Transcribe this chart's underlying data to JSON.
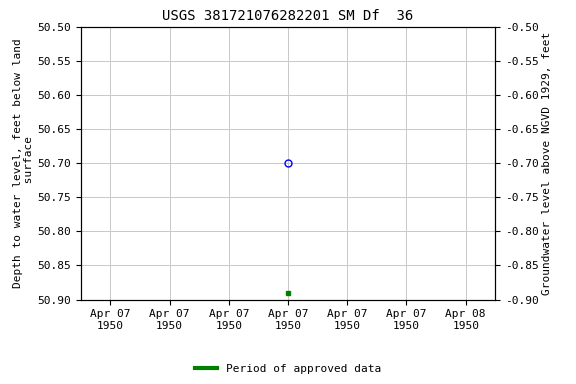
{
  "title": "USGS 381721076282201 SM Df  36",
  "ylabel_left": "Depth to water level, feet below land\n surface",
  "ylabel_right": "Groundwater level above NGVD 1929, feet",
  "y_ticks_left": [
    50.5,
    50.55,
    50.6,
    50.65,
    50.7,
    50.75,
    50.8,
    50.85,
    50.9
  ],
  "y_ticks_right": [
    -0.5,
    -0.55,
    -0.6,
    -0.65,
    -0.7,
    -0.75,
    -0.8,
    -0.85,
    -0.9
  ],
  "blue_point_x": 3.0,
  "blue_point_y": 50.7,
  "green_point_x": 3.0,
  "green_point_y": 50.89,
  "x_ticks": [
    0,
    1,
    2,
    3,
    4,
    5,
    6
  ],
  "x_labels": [
    "Apr 07\n1950",
    "Apr 07\n1950",
    "Apr 07\n1950",
    "Apr 07\n1950",
    "Apr 07\n1950",
    "Apr 07\n1950",
    "Apr 08\n1950"
  ],
  "xlim": [
    -0.5,
    6.5
  ],
  "grid_color": "#c8c8c8",
  "bg_color": "#ffffff",
  "legend_label": "Period of approved data",
  "legend_color": "#008000",
  "title_fontsize": 10,
  "label_fontsize": 8,
  "tick_fontsize": 8
}
